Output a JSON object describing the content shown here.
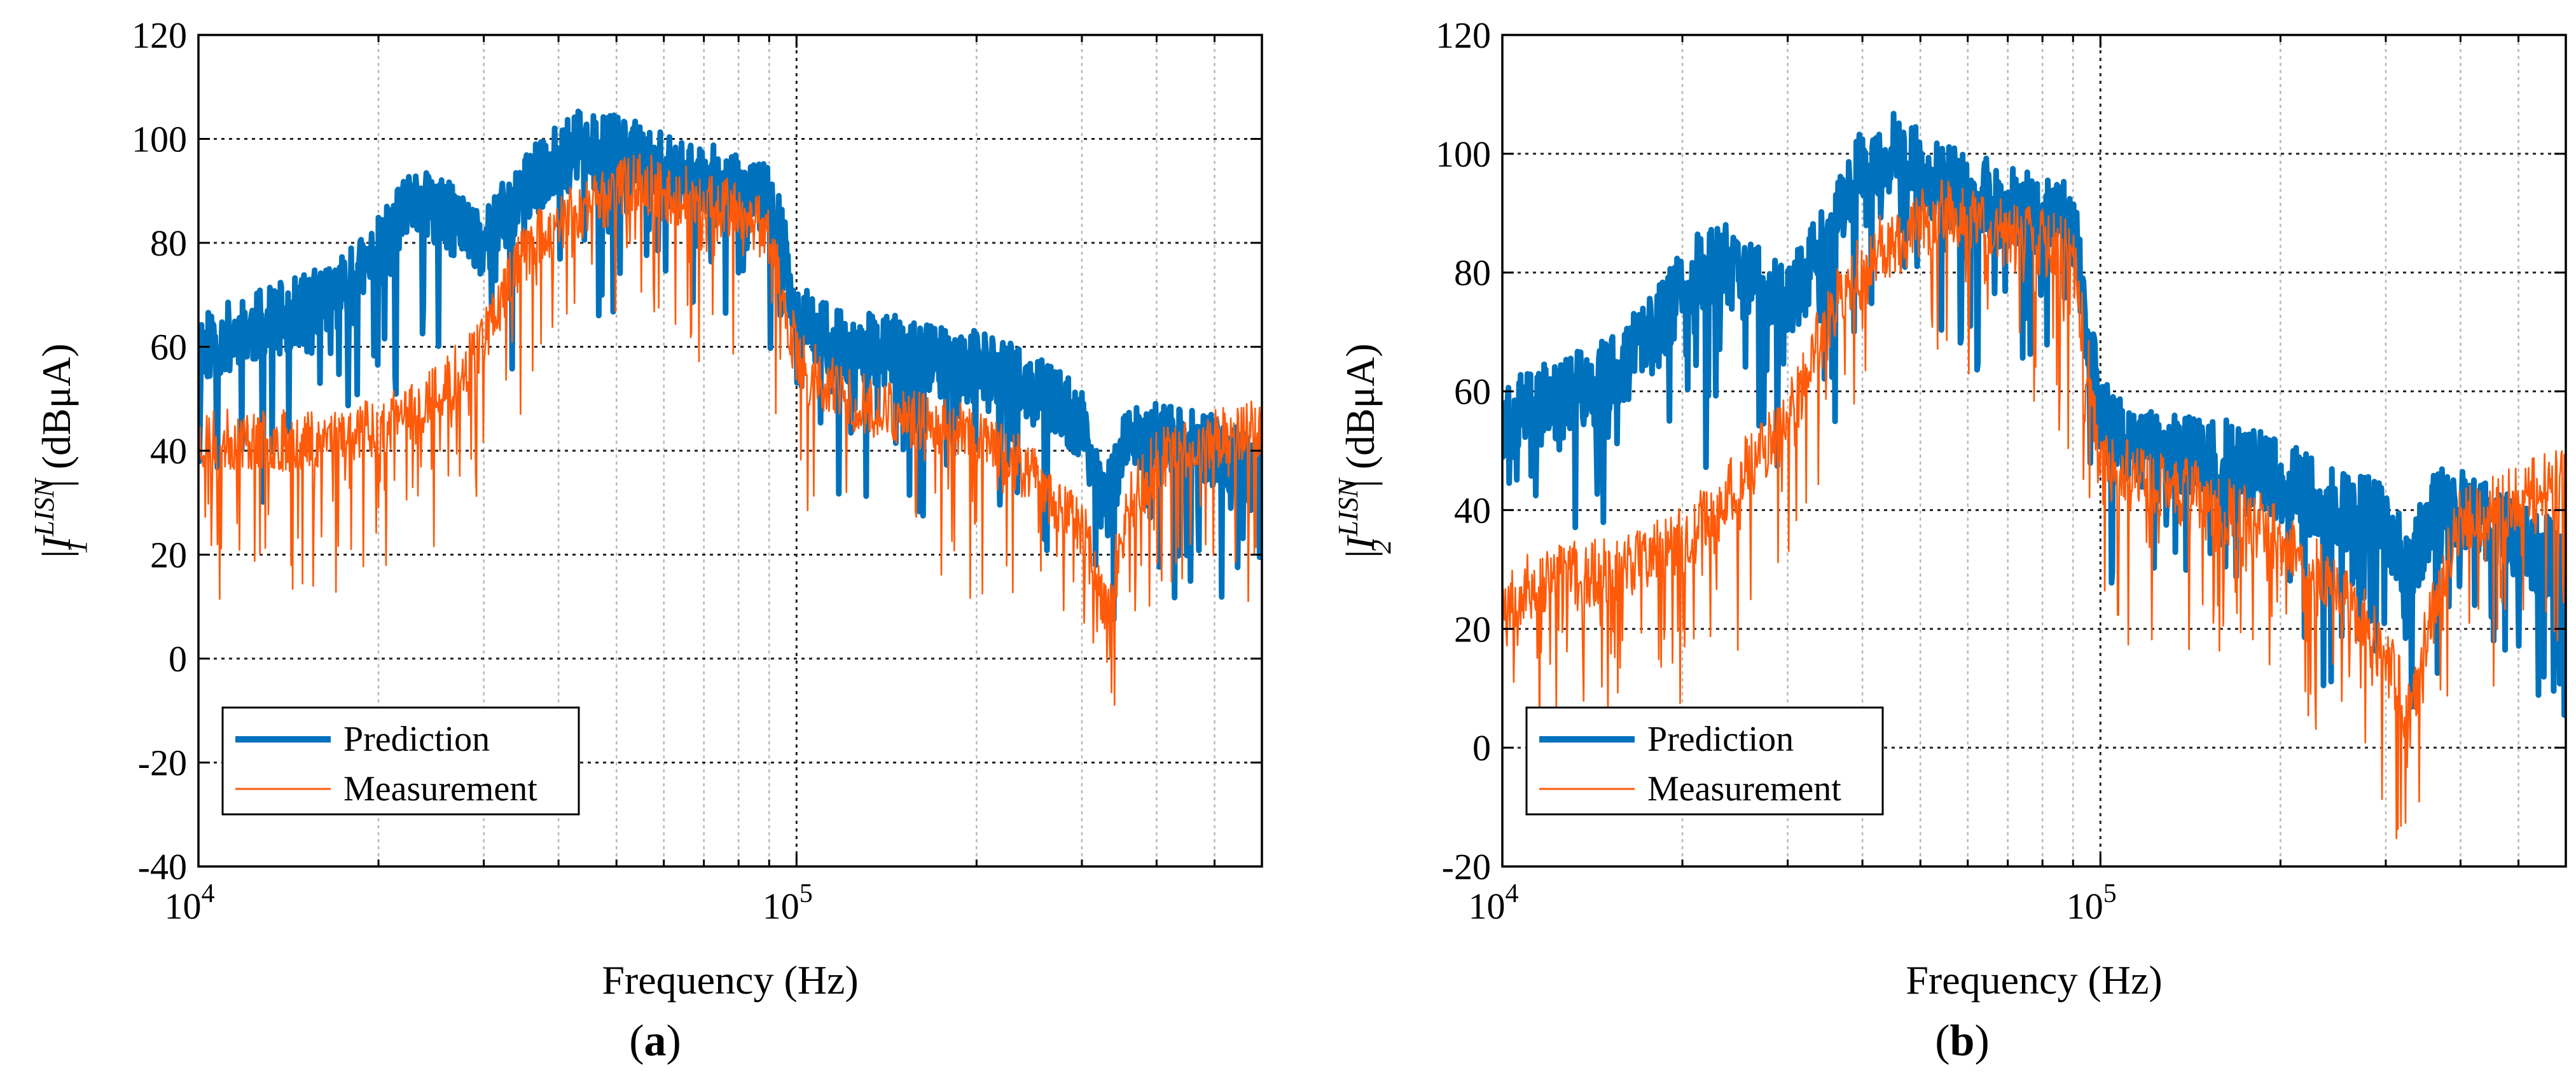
{
  "figure_labels": [
    "(a)",
    "(b)"
  ],
  "colors": {
    "prediction": "#0072BD",
    "measurement": "#FF5A0A",
    "grid": "#b8b8b8",
    "axis": "#000000"
  },
  "chart_data": [
    {
      "type": "line",
      "panel_label": "(a)",
      "xlabel": "Frequency (Hz)",
      "ylabel": {
        "prefix": "|",
        "symbol": "I",
        "superscript": "LISN",
        "subscript": "1",
        "suffix": "| (dBμA)"
      },
      "xscale": "log",
      "xlim": [
        10000,
        600000
      ],
      "ylim": [
        -40,
        120
      ],
      "yticks": [
        -40,
        -20,
        0,
        20,
        40,
        60,
        80,
        100,
        120
      ],
      "xticks": [
        {
          "value": 10000,
          "base": "10",
          "exp": "4"
        },
        {
          "value": 100000,
          "base": "10",
          "exp": "5"
        }
      ],
      "grid": true,
      "legend": {
        "position": "bottom-left",
        "entries": [
          "Prediction",
          "Measurement"
        ]
      },
      "series": [
        {
          "name": "Prediction",
          "style": "thick",
          "x": [
            10000,
            12000,
            15000,
            18000,
            20000,
            23000,
            26000,
            30000,
            35000,
            40000,
            45000,
            50000,
            55000,
            60000,
            70000,
            80000,
            90000,
            95000,
            100000,
            120000,
            150000,
            200000,
            250000,
            300000,
            330000,
            360000,
            400000,
            500000,
            600000
          ],
          "y": [
            60,
            63,
            67,
            72,
            78,
            88,
            85,
            80,
            90,
            96,
            100,
            98,
            96,
            94,
            93,
            90,
            88,
            80,
            65,
            60,
            59,
            56,
            52,
            45,
            30,
            44,
            42,
            40,
            35
          ],
          "noise": 7,
          "dips": 10,
          "seed": 11
        },
        {
          "name": "Measurement",
          "style": "thin",
          "x": [
            10000,
            12000,
            15000,
            18000,
            20000,
            23000,
            26000,
            30000,
            35000,
            40000,
            45000,
            50000,
            55000,
            60000,
            70000,
            80000,
            90000,
            95000,
            100000,
            120000,
            150000,
            200000,
            250000,
            300000,
            330000,
            360000,
            400000,
            500000,
            600000
          ],
          "y": [
            42,
            42,
            42,
            44,
            45,
            47,
            52,
            62,
            78,
            84,
            87,
            90,
            92,
            90,
            88,
            86,
            82,
            70,
            58,
            50,
            47,
            43,
            35,
            25,
            10,
            30,
            38,
            42,
            45
          ],
          "noise": 6,
          "dips": 14,
          "seed": 23
        }
      ]
    },
    {
      "type": "line",
      "panel_label": "(b)",
      "xlabel": "Frequency (Hz)",
      "ylabel": {
        "prefix": "|",
        "symbol": "I",
        "superscript": "LISN",
        "subscript": "2",
        "suffix": "| (dBμA)"
      },
      "xscale": "log",
      "xlim": [
        10000,
        600000
      ],
      "ylim": [
        -20,
        120
      ],
      "yticks": [
        -20,
        0,
        20,
        40,
        60,
        80,
        100,
        120
      ],
      "xticks": [
        {
          "value": 10000,
          "base": "10",
          "exp": "4"
        },
        {
          "value": 100000,
          "base": "10",
          "exp": "5"
        }
      ],
      "grid": true,
      "legend": {
        "position": "bottom-left",
        "entries": [
          "Prediction",
          "Measurement"
        ]
      },
      "series": [
        {
          "name": "Prediction",
          "style": "thick",
          "x": [
            10000,
            12000,
            15000,
            18000,
            20000,
            23000,
            26000,
            30000,
            35000,
            40000,
            45000,
            50000,
            55000,
            60000,
            70000,
            80000,
            90000,
            95000,
            100000,
            120000,
            150000,
            200000,
            250000,
            300000,
            330000,
            360000,
            400000,
            500000,
            600000
          ],
          "y": [
            55,
            58,
            62,
            70,
            78,
            82,
            78,
            75,
            85,
            98,
            100,
            97,
            95,
            93,
            92,
            90,
            88,
            70,
            55,
            50,
            50,
            45,
            40,
            38,
            30,
            40,
            40,
            35,
            30
          ],
          "noise": 7,
          "dips": 10,
          "seed": 37
        },
        {
          "name": "Measurement",
          "style": "thin",
          "x": [
            10000,
            12000,
            15000,
            18000,
            20000,
            23000,
            26000,
            30000,
            35000,
            40000,
            45000,
            50000,
            55000,
            60000,
            70000,
            80000,
            90000,
            95000,
            100000,
            120000,
            150000,
            200000,
            250000,
            300000,
            330000,
            360000,
            400000,
            500000,
            600000
          ],
          "y": [
            25,
            28,
            30,
            33,
            35,
            40,
            48,
            55,
            72,
            82,
            85,
            88,
            90,
            88,
            86,
            85,
            83,
            65,
            47,
            45,
            42,
            35,
            28,
            15,
            5,
            25,
            38,
            42,
            45
          ],
          "noise": 6,
          "dips": 14,
          "seed": 53
        }
      ]
    }
  ]
}
